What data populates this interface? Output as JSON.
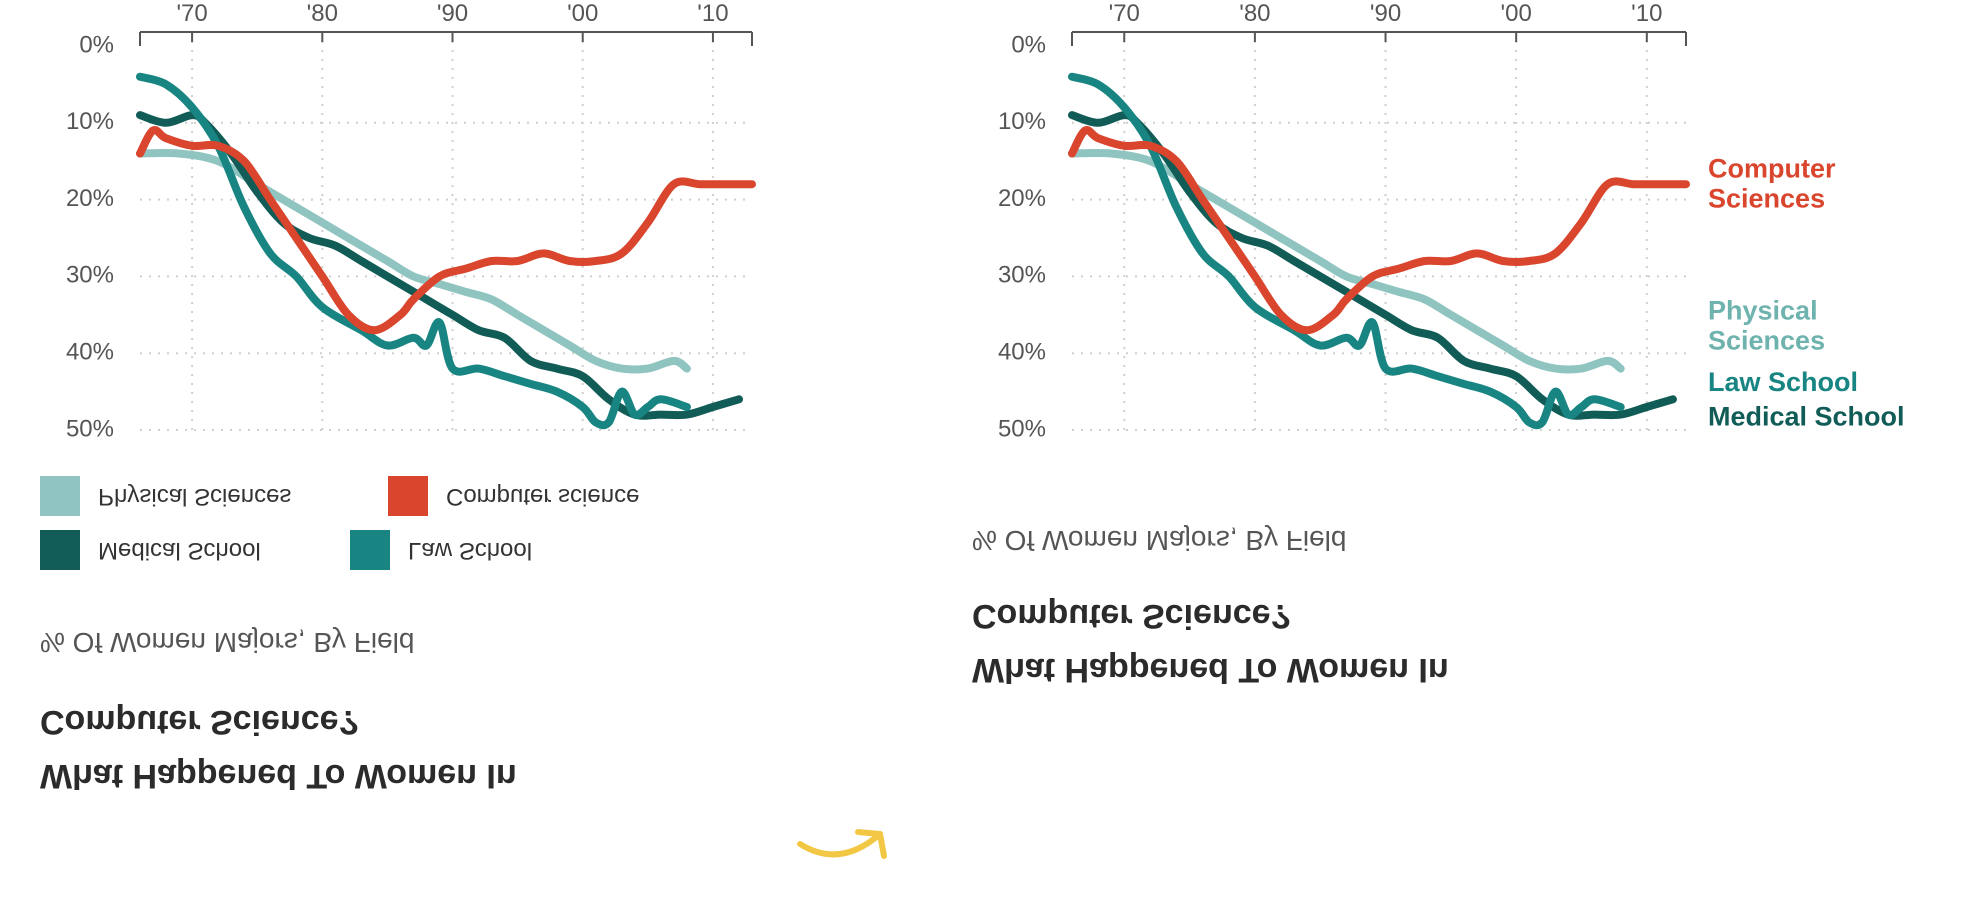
{
  "colors": {
    "physical": "#8fc4c0",
    "medical": "#115c56",
    "law": "#188582",
    "computer": "#d9452d",
    "arrow": "#f2c744",
    "title": "#2b2b2b",
    "axis": "#555555"
  },
  "left": {
    "title_line1": "What Happened To Women In",
    "title_line2": "Computer Science?",
    "subtitle": "% Of Women Majors, By Field",
    "legend": {
      "physical": "Physical Sciences",
      "computer": "Computer science",
      "medical": "Medical School",
      "law": "Law School"
    }
  },
  "right": {
    "title_line1": "What Happened To Women In",
    "title_line2": "Computer Science?",
    "subtitle": "% Of Women Majors, By Field",
    "direct_labels": {
      "computer": [
        "Computer",
        "Sciences"
      ],
      "physical": [
        "Physical",
        "Sciences"
      ],
      "law": [
        "Law School"
      ],
      "medical": [
        "Medical School"
      ]
    }
  },
  "chart_data": [
    {
      "type": "line",
      "title": "What Happened To Women In Computer Science?",
      "subtitle": "% Of Women Majors, By Field",
      "legend_placement": "bottom",
      "x_tick_labels": [
        "'70",
        "'80",
        "'90",
        "'00",
        "'10"
      ],
      "x_ticks": [
        1970,
        1980,
        1990,
        2000,
        2010
      ],
      "xlim": [
        1966,
        2013
      ],
      "y_tick_labels": [
        "0%",
        "10%",
        "20%",
        "30%",
        "40%",
        "50%"
      ],
      "y_ticks": [
        0,
        10,
        20,
        30,
        40,
        50
      ],
      "ylim": [
        0,
        50
      ],
      "grid": true,
      "series": [
        {
          "name": "Physical Sciences",
          "key": "physical",
          "x": [
            1966,
            1969,
            1972,
            1975,
            1977,
            1980,
            1982,
            1985,
            1987,
            1989,
            1991,
            1993,
            1995,
            1997,
            1999,
            2001,
            2003,
            2005,
            2007,
            2008
          ],
          "y": [
            14,
            14,
            15,
            18,
            20,
            23,
            25,
            28,
            30,
            31,
            32,
            33,
            35,
            37,
            39,
            41,
            42,
            42,
            41,
            42
          ]
        },
        {
          "name": "Medical School",
          "key": "medical",
          "x": [
            1966,
            1968,
            1970,
            1971,
            1973,
            1975,
            1977,
            1979,
            1981,
            1983,
            1986,
            1988,
            1990,
            1992,
            1994,
            1996,
            1998,
            2000,
            2002,
            2004,
            2006,
            2008,
            2010,
            2012
          ],
          "y": [
            9,
            10,
            9,
            10,
            14,
            19,
            23,
            25,
            26,
            28,
            31,
            33,
            35,
            37,
            38,
            41,
            42,
            43,
            46,
            48,
            48,
            48,
            47,
            46
          ]
        },
        {
          "name": "Law School",
          "key": "law",
          "x": [
            1966,
            1968,
            1970,
            1972,
            1974,
            1976,
            1978,
            1980,
            1983,
            1985,
            1987,
            1988,
            1989,
            1990,
            1992,
            1994,
            1996,
            1998,
            2000,
            2001,
            2002,
            2003,
            2004,
            2005,
            2006,
            2008
          ],
          "y": [
            4,
            5,
            8,
            13,
            21,
            27,
            30,
            34,
            37,
            39,
            38,
            39,
            36,
            42,
            42,
            43,
            44,
            45,
            47,
            49,
            49,
            45,
            48,
            47,
            46,
            47
          ]
        },
        {
          "name": "Computer science",
          "key": "computer",
          "x": [
            1966,
            1967,
            1968,
            1970,
            1972,
            1974,
            1976,
            1978,
            1980,
            1982,
            1984,
            1986,
            1987,
            1989,
            1991,
            1993,
            1995,
            1997,
            1999,
            2001,
            2003,
            2005,
            2007,
            2009,
            2011,
            2013
          ],
          "y": [
            14,
            11,
            12,
            13,
            13,
            15,
            20,
            25,
            30,
            35,
            37,
            35,
            33,
            30,
            29,
            28,
            28,
            27,
            28,
            28,
            27,
            23,
            18,
            18,
            18,
            18
          ]
        }
      ]
    },
    {
      "type": "line",
      "title": "What Happened To Women In Computer Science?",
      "subtitle": "% Of Women Majors, By Field",
      "legend_placement": "direct labels at line ends",
      "x_tick_labels": [
        "'70",
        "'80",
        "'90",
        "'00",
        "'10"
      ],
      "x_ticks": [
        1970,
        1980,
        1990,
        2000,
        2010
      ],
      "xlim": [
        1966,
        2013
      ],
      "y_tick_labels": [
        "0%",
        "10%",
        "20%",
        "30%",
        "40%",
        "50%"
      ],
      "y_ticks": [
        0,
        10,
        20,
        30,
        40,
        50
      ],
      "ylim": [
        0,
        50
      ],
      "grid": true,
      "series_same_as_first_chart": true
    }
  ]
}
